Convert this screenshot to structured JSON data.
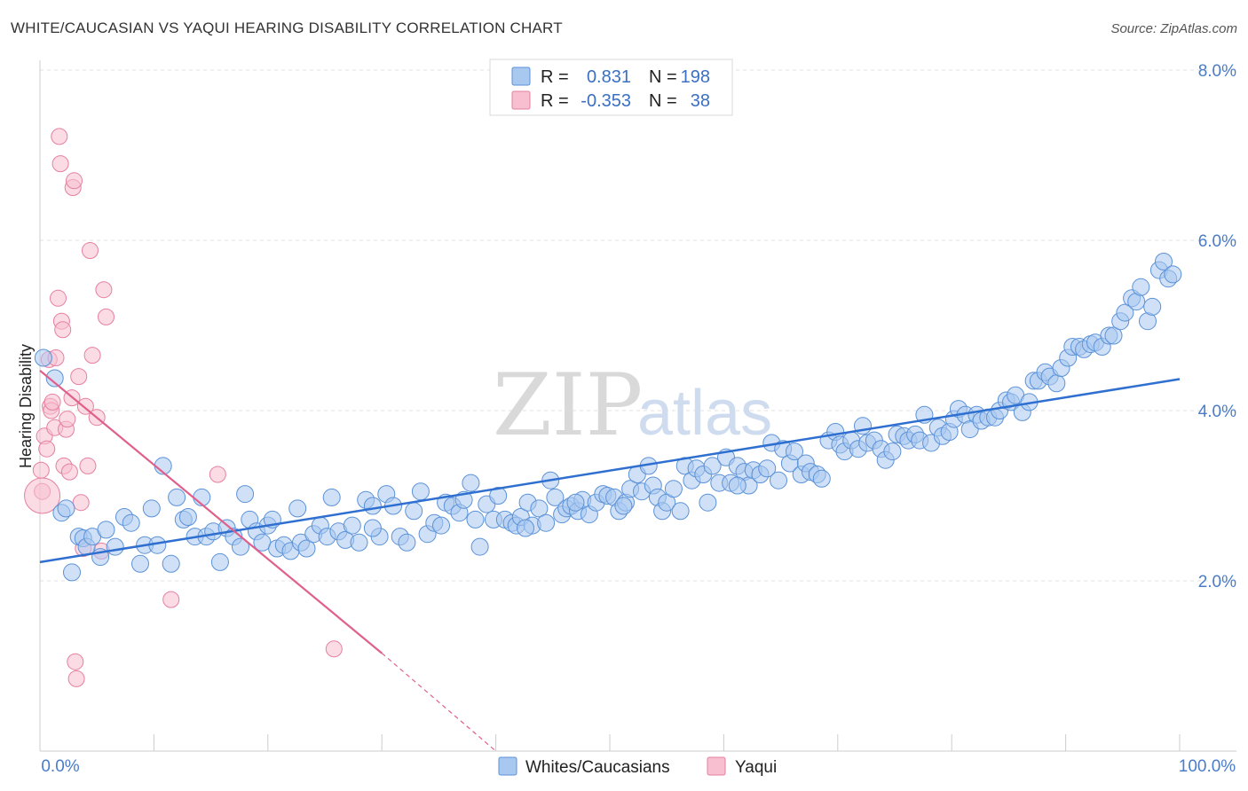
{
  "title": "WHITE/CAUCASIAN VS YAQUI HEARING DISABILITY CORRELATION CHART",
  "source": "Source: ZipAtlas.com",
  "watermark": {
    "zip": "ZIP",
    "atlas": "atlas"
  },
  "legend": {
    "row1": {
      "r_label": "R =",
      "r_value": "0.831",
      "n_label": "N =",
      "n_value": "198"
    },
    "row2": {
      "r_label": "R =",
      "r_value": "-0.353",
      "n_label": "N =",
      "n_value": "38"
    }
  },
  "colors": {
    "blue_fill": "#a9c8f0",
    "blue_stroke": "#5b92d8",
    "blue_line": "#2f6fd0",
    "pink_fill": "#f7bfd0",
    "pink_stroke": "#e67fa0",
    "pink_line": "#e0608c",
    "grid": "#dddddd",
    "axis_text": "#4a7cc9"
  },
  "chart_data": {
    "type": "scatter",
    "title": "WHITE/CAUCASIAN VS YAQUI HEARING DISABILITY CORRELATION CHART",
    "xlabel": "",
    "ylabel": "Hearing Disability",
    "xlim": [
      0,
      100
    ],
    "ylim": [
      0,
      8.4
    ],
    "x_tick_labels": [
      "0.0%",
      "100.0%"
    ],
    "y_ticks": [
      2.0,
      4.0,
      6.0,
      8.0
    ],
    "y_tick_labels": [
      "2.0%",
      "4.0%",
      "6.0%",
      "8.0%"
    ],
    "legend_entries": [
      "Whites/Caucasians",
      "Yaqui"
    ],
    "series": [
      {
        "name": "Whites/Caucasians",
        "r": 0.831,
        "n": 198,
        "trend": {
          "x0": 0,
          "y0": 2.22,
          "x1": 100,
          "y1": 4.37
        },
        "points": [
          [
            0.3,
            4.62
          ],
          [
            1.3,
            4.38
          ],
          [
            1.9,
            2.8
          ],
          [
            2.3,
            2.85
          ],
          [
            2.8,
            2.1
          ],
          [
            3.4,
            2.52
          ],
          [
            3.8,
            2.5
          ],
          [
            4.1,
            2.4
          ],
          [
            4.6,
            2.52
          ],
          [
            5.3,
            2.28
          ],
          [
            5.8,
            2.6
          ],
          [
            6.6,
            2.4
          ],
          [
            7.4,
            2.75
          ],
          [
            8.0,
            2.68
          ],
          [
            8.8,
            2.2
          ],
          [
            9.2,
            2.42
          ],
          [
            9.8,
            2.85
          ],
          [
            10.3,
            2.42
          ],
          [
            10.8,
            3.35
          ],
          [
            11.5,
            2.2
          ],
          [
            12.0,
            2.98
          ],
          [
            12.6,
            2.72
          ],
          [
            13.0,
            2.75
          ],
          [
            13.6,
            2.52
          ],
          [
            14.2,
            2.98
          ],
          [
            14.6,
            2.52
          ],
          [
            15.2,
            2.58
          ],
          [
            15.8,
            2.22
          ],
          [
            16.4,
            2.62
          ],
          [
            17.0,
            2.52
          ],
          [
            17.6,
            2.4
          ],
          [
            18.0,
            3.02
          ],
          [
            18.4,
            2.72
          ],
          [
            19.0,
            2.58
          ],
          [
            19.5,
            2.45
          ],
          [
            20.0,
            2.65
          ],
          [
            20.4,
            2.72
          ],
          [
            20.8,
            2.38
          ],
          [
            21.4,
            2.42
          ],
          [
            22.0,
            2.35
          ],
          [
            22.6,
            2.85
          ],
          [
            22.9,
            2.45
          ],
          [
            23.4,
            2.38
          ],
          [
            24.0,
            2.55
          ],
          [
            24.6,
            2.65
          ],
          [
            25.2,
            2.52
          ],
          [
            25.6,
            2.98
          ],
          [
            26.2,
            2.58
          ],
          [
            26.8,
            2.48
          ],
          [
            27.4,
            2.65
          ],
          [
            28.0,
            2.45
          ],
          [
            28.6,
            2.95
          ],
          [
            29.2,
            2.88
          ],
          [
            29.8,
            2.52
          ],
          [
            30.4,
            3.02
          ],
          [
            31.0,
            2.88
          ],
          [
            31.6,
            2.52
          ],
          [
            32.2,
            2.45
          ],
          [
            32.8,
            2.82
          ],
          [
            33.4,
            3.05
          ],
          [
            34.0,
            2.55
          ],
          [
            34.6,
            2.68
          ],
          [
            35.2,
            2.65
          ],
          [
            35.6,
            2.92
          ],
          [
            36.2,
            2.88
          ],
          [
            36.8,
            2.8
          ],
          [
            37.2,
            2.95
          ],
          [
            37.8,
            3.15
          ],
          [
            38.2,
            2.72
          ],
          [
            38.6,
            2.4
          ],
          [
            39.2,
            2.9
          ],
          [
            39.8,
            2.72
          ],
          [
            40.2,
            3.0
          ],
          [
            40.8,
            2.72
          ],
          [
            41.4,
            2.68
          ],
          [
            41.8,
            2.65
          ],
          [
            42.2,
            2.75
          ],
          [
            42.8,
            2.92
          ],
          [
            43.2,
            2.65
          ],
          [
            43.8,
            2.85
          ],
          [
            44.4,
            2.68
          ],
          [
            44.8,
            3.18
          ],
          [
            45.2,
            2.98
          ],
          [
            45.8,
            2.78
          ],
          [
            46.2,
            2.85
          ],
          [
            46.6,
            2.88
          ],
          [
            47.2,
            2.82
          ],
          [
            47.6,
            2.95
          ],
          [
            48.2,
            2.78
          ],
          [
            48.8,
            2.92
          ],
          [
            49.4,
            3.02
          ],
          [
            49.8,
            3.0
          ],
          [
            50.4,
            2.98
          ],
          [
            50.8,
            2.82
          ],
          [
            51.4,
            2.92
          ],
          [
            51.8,
            3.08
          ],
          [
            52.4,
            3.25
          ],
          [
            52.8,
            3.05
          ],
          [
            53.4,
            3.35
          ],
          [
            53.8,
            3.12
          ],
          [
            54.2,
            2.98
          ],
          [
            54.6,
            2.82
          ],
          [
            55.0,
            2.92
          ],
          [
            55.6,
            3.08
          ],
          [
            56.2,
            2.82
          ],
          [
            56.6,
            3.35
          ],
          [
            57.2,
            3.18
          ],
          [
            57.6,
            3.32
          ],
          [
            58.2,
            3.25
          ],
          [
            58.6,
            2.92
          ],
          [
            59.0,
            3.35
          ],
          [
            59.6,
            3.15
          ],
          [
            60.2,
            3.45
          ],
          [
            60.6,
            3.15
          ],
          [
            61.2,
            3.35
          ],
          [
            61.8,
            3.28
          ],
          [
            62.2,
            3.12
          ],
          [
            62.6,
            3.3
          ],
          [
            63.2,
            3.25
          ],
          [
            63.8,
            3.32
          ],
          [
            64.2,
            3.62
          ],
          [
            64.8,
            3.18
          ],
          [
            65.2,
            3.55
          ],
          [
            65.8,
            3.38
          ],
          [
            66.2,
            3.52
          ],
          [
            66.8,
            3.25
          ],
          [
            67.2,
            3.38
          ],
          [
            67.6,
            3.28
          ],
          [
            68.2,
            3.25
          ],
          [
            68.6,
            3.2
          ],
          [
            69.2,
            3.65
          ],
          [
            69.8,
            3.75
          ],
          [
            70.2,
            3.6
          ],
          [
            70.6,
            3.52
          ],
          [
            71.2,
            3.65
          ],
          [
            71.8,
            3.55
          ],
          [
            72.2,
            3.82
          ],
          [
            72.6,
            3.62
          ],
          [
            73.2,
            3.65
          ],
          [
            73.8,
            3.55
          ],
          [
            74.2,
            3.42
          ],
          [
            74.8,
            3.52
          ],
          [
            75.2,
            3.72
          ],
          [
            75.8,
            3.7
          ],
          [
            76.2,
            3.65
          ],
          [
            76.8,
            3.72
          ],
          [
            77.2,
            3.65
          ],
          [
            77.6,
            3.95
          ],
          [
            78.2,
            3.62
          ],
          [
            78.8,
            3.8
          ],
          [
            79.2,
            3.7
          ],
          [
            79.8,
            3.75
          ],
          [
            80.2,
            3.9
          ],
          [
            80.6,
            4.02
          ],
          [
            81.2,
            3.95
          ],
          [
            81.6,
            3.78
          ],
          [
            82.2,
            3.95
          ],
          [
            82.6,
            3.88
          ],
          [
            83.2,
            3.92
          ],
          [
            83.8,
            3.92
          ],
          [
            84.2,
            4.0
          ],
          [
            84.8,
            4.12
          ],
          [
            85.2,
            4.1
          ],
          [
            85.6,
            4.18
          ],
          [
            86.2,
            3.98
          ],
          [
            86.8,
            4.1
          ],
          [
            87.2,
            4.35
          ],
          [
            87.6,
            4.35
          ],
          [
            88.2,
            4.45
          ],
          [
            88.6,
            4.4
          ],
          [
            89.2,
            4.32
          ],
          [
            89.6,
            4.5
          ],
          [
            90.2,
            4.62
          ],
          [
            90.6,
            4.75
          ],
          [
            91.2,
            4.75
          ],
          [
            91.6,
            4.72
          ],
          [
            92.2,
            4.78
          ],
          [
            92.6,
            4.8
          ],
          [
            93.2,
            4.75
          ],
          [
            93.8,
            4.88
          ],
          [
            94.2,
            4.88
          ],
          [
            94.8,
            5.05
          ],
          [
            95.2,
            5.15
          ],
          [
            95.8,
            5.32
          ],
          [
            96.2,
            5.28
          ],
          [
            96.6,
            5.45
          ],
          [
            97.2,
            5.05
          ],
          [
            97.6,
            5.22
          ],
          [
            98.2,
            5.65
          ],
          [
            98.6,
            5.75
          ],
          [
            99.0,
            5.55
          ],
          [
            99.4,
            5.6
          ],
          [
            61.2,
            3.12
          ],
          [
            51.2,
            2.88
          ],
          [
            47.0,
            2.92
          ],
          [
            42.6,
            2.62
          ],
          [
            29.2,
            2.62
          ]
        ]
      },
      {
        "name": "Yaqui",
        "r": -0.353,
        "n": 38,
        "trend": {
          "x0": 0,
          "y0": 4.47,
          "x1": 30,
          "y1": 1.15
        },
        "trend_dashed": {
          "x0": 30,
          "y0": 1.15,
          "x1": 40,
          "y1": 0.0
        },
        "points": [
          [
            0.1,
            3.3
          ],
          [
            0.2,
            3.05
          ],
          [
            0.4,
            3.7
          ],
          [
            0.6,
            3.55
          ],
          [
            0.8,
            4.6
          ],
          [
            0.9,
            4.05
          ],
          [
            1.0,
            4.0
          ],
          [
            1.1,
            4.1
          ],
          [
            1.3,
            3.8
          ],
          [
            1.4,
            4.62
          ],
          [
            1.6,
            5.32
          ],
          [
            1.7,
            7.22
          ],
          [
            1.8,
            6.9
          ],
          [
            1.9,
            5.05
          ],
          [
            2.0,
            4.95
          ],
          [
            2.1,
            3.35
          ],
          [
            2.3,
            3.78
          ],
          [
            2.4,
            3.9
          ],
          [
            2.6,
            3.28
          ],
          [
            2.8,
            4.15
          ],
          [
            2.9,
            6.62
          ],
          [
            3.0,
            6.7
          ],
          [
            3.1,
            1.05
          ],
          [
            3.2,
            0.85
          ],
          [
            3.4,
            4.4
          ],
          [
            3.6,
            2.92
          ],
          [
            3.8,
            2.38
          ],
          [
            4.0,
            4.05
          ],
          [
            4.2,
            3.35
          ],
          [
            4.4,
            5.88
          ],
          [
            4.6,
            4.65
          ],
          [
            5.0,
            3.92
          ],
          [
            5.4,
            2.35
          ],
          [
            5.6,
            5.42
          ],
          [
            5.8,
            5.1
          ],
          [
            11.5,
            1.78
          ],
          [
            15.6,
            3.25
          ],
          [
            25.8,
            1.2
          ]
        ]
      }
    ]
  }
}
